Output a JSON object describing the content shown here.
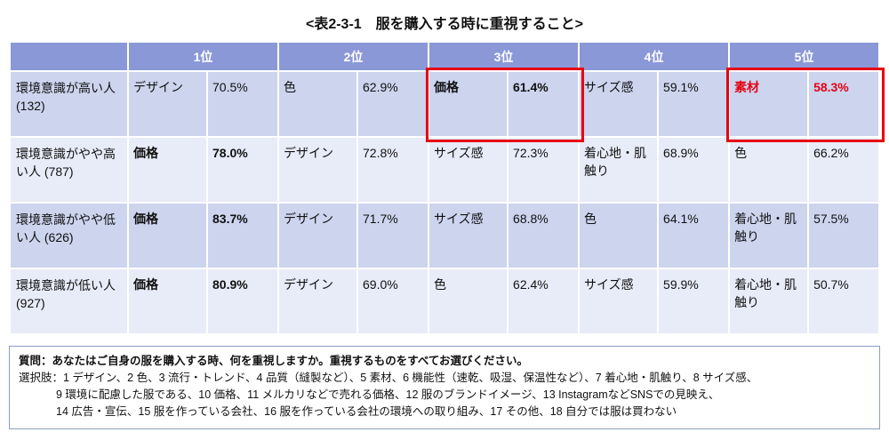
{
  "chart_data": {
    "type": "table",
    "title": "<表2-3-1　服を購入する時に重視すること>",
    "columns": [
      "1位",
      "2位",
      "3位",
      "4位",
      "5位"
    ],
    "rows": [
      {
        "label": "環境意識が高い人 (132)",
        "ranks": [
          {
            "item": "デザイン",
            "pct": "70.5%"
          },
          {
            "item": "色",
            "pct": "62.9%"
          },
          {
            "item": "価格",
            "pct": "61.4%"
          },
          {
            "item": "サイズ感",
            "pct": "59.1%"
          },
          {
            "item": "素材",
            "pct": "58.3%"
          }
        ]
      },
      {
        "label": "環境意識がやや高い人 (787)",
        "ranks": [
          {
            "item": "価格",
            "pct": "78.0%"
          },
          {
            "item": "デザイン",
            "pct": "72.8%"
          },
          {
            "item": "サイズ感",
            "pct": "72.3%"
          },
          {
            "item": "着心地・肌触り",
            "pct": "68.9%"
          },
          {
            "item": "色",
            "pct": "66.2%"
          }
        ]
      },
      {
        "label": "環境意識がやや低い人 (626)",
        "ranks": [
          {
            "item": "価格",
            "pct": "83.7%"
          },
          {
            "item": "デザイン",
            "pct": "71.7%"
          },
          {
            "item": "サイズ感",
            "pct": "68.8%"
          },
          {
            "item": "色",
            "pct": "64.1%"
          },
          {
            "item": "着心地・肌触り",
            "pct": "57.5%"
          }
        ]
      },
      {
        "label": "環境意識が低い人 (927)",
        "ranks": [
          {
            "item": "価格",
            "pct": "80.9%"
          },
          {
            "item": "デザイン",
            "pct": "69.0%"
          },
          {
            "item": "色",
            "pct": "62.4%"
          },
          {
            "item": "サイズ感",
            "pct": "59.9%"
          },
          {
            "item": "着心地・肌触り",
            "pct": "50.7%"
          }
        ]
      }
    ],
    "highlights": [
      {
        "row": "環境意識が高い人 (132)",
        "column": "3位",
        "item": "価格",
        "pct": "61.4%",
        "style": "red-outline-bold"
      },
      {
        "row": "環境意識が高い人 (132)",
        "column": "5位",
        "item": "素材",
        "pct": "58.3%",
        "style": "red-outline-red-bold-text"
      }
    ]
  },
  "footnote": {
    "question": "質問：あなたはご自身の服を購入する時、何を重視しますか。重視するものをすべてお選びください。",
    "options_line1": "選択肢：1 デザイン、2 色、3 流行・トレンド、4 品質（縫製など）、5 素材、6 機能性（速乾、吸湿、保温性など）、7 着心地・肌触り、8 サイズ感、",
    "options_line2": "9 環境に配慮した服である、10 価格、11 メルカリなどで売れる価格、12 服のブランドイメージ、13 InstagramなどSNSでの見映え、",
    "options_line3": "14 広告・宣伝、15 服を作っている会社、16 服を作っている会社の環境への取り組み、17 その他、18 自分では服は買わない"
  },
  "colors": {
    "header_bg": "#8b98d7",
    "row_dark": "#ccd4ee",
    "row_light": "#e8ebf8",
    "highlight_red": "#e60012",
    "note_border": "#8e9cc6"
  }
}
